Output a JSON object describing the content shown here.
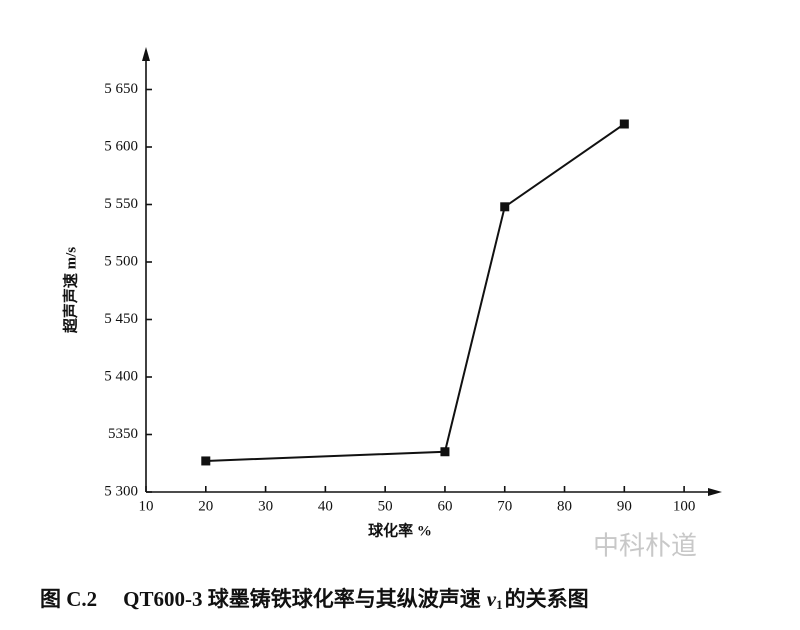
{
  "chart_data": {
    "type": "line",
    "x_label": "球化率  %",
    "y_label": "超声声速  m/s",
    "figure_number": "图 C.2",
    "caption_prefix": "QT600-3 球墨铸铁球化率与其纵波声速",
    "caption_symbol": "v",
    "caption_subscript": "1",
    "caption_suffix": "的关系图",
    "watermark": "中科朴道",
    "x": [
      20,
      60,
      70,
      90
    ],
    "series": [
      {
        "name": "超声声速",
        "color": "#111111",
        "values": [
          5327,
          5335,
          5548,
          5620
        ]
      }
    ],
    "xlim": [
      10,
      105
    ],
    "ylim": [
      5300,
      5680
    ],
    "xticks": [
      10,
      20,
      30,
      40,
      50,
      60,
      70,
      80,
      90,
      100
    ],
    "yticks": [
      {
        "value": 5300,
        "label": "5 300"
      },
      5350,
      {
        "value": 5400,
        "label": "5 400"
      },
      {
        "value": 5450,
        "label": "5 450"
      },
      {
        "value": 5500,
        "label": "5 500"
      },
      {
        "value": 5550,
        "label": "5 550"
      },
      {
        "value": 5600,
        "label": "5 600"
      },
      {
        "value": 5650,
        "label": "5 650"
      }
    ],
    "grid": false
  }
}
